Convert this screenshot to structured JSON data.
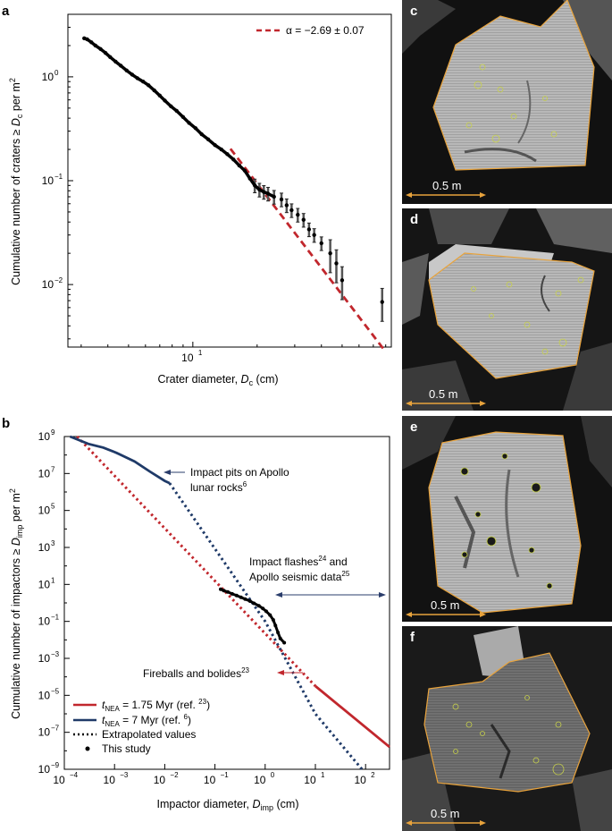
{
  "figure": {
    "panels": {
      "a": {
        "label": "a"
      },
      "b": {
        "label": "b"
      },
      "c": {
        "label": "c",
        "scale_label": "0.5 m"
      },
      "d": {
        "label": "d",
        "scale_label": "0.5 m"
      },
      "e": {
        "label": "e",
        "scale_label": "0.5 m"
      },
      "f": {
        "label": "f",
        "scale_label": "0.5 m"
      }
    },
    "colors": {
      "fit_red": "#c1272d",
      "nea_red": "#c1272d",
      "nea_blue": "#1f3a68",
      "outline_orange": "#e8a33c",
      "arrow_blue": "#2a3d6b",
      "arrow_red": "#c1272d"
    }
  },
  "chart_data": [
    {
      "type": "scatter",
      "panel": "a",
      "xlabel": "Crater diameter, D_c (cm)",
      "ylabel": "Cumulative number of craters ≥ D_c per m²",
      "x_scale": "log",
      "y_scale": "log",
      "xlim": [
        2.6,
        85
      ],
      "ylim": [
        0.0025,
        4
      ],
      "x_ticks": [
        10
      ],
      "y_ticks": [
        0.01,
        0.1,
        1
      ],
      "legend": {
        "position": "top-right",
        "text": "α = −2.69 ± 0.07"
      },
      "fit_line": {
        "alpha": -2.69,
        "uncertainty": 0.07,
        "x_range": [
          15,
          78
        ],
        "style": "dashed",
        "color": "#c1272d"
      },
      "points": [
        [
          3.1,
          2.35
        ],
        [
          3.2,
          2.3
        ],
        [
          3.35,
          2.15
        ],
        [
          3.5,
          2.0
        ],
        [
          3.7,
          1.85
        ],
        [
          3.9,
          1.7
        ],
        [
          4.1,
          1.55
        ],
        [
          4.35,
          1.4
        ],
        [
          4.6,
          1.28
        ],
        [
          4.9,
          1.15
        ],
        [
          5.2,
          1.05
        ],
        [
          5.5,
          0.97
        ],
        [
          5.85,
          0.9
        ],
        [
          6.2,
          0.83
        ],
        [
          6.6,
          0.74
        ],
        [
          7.0,
          0.66
        ],
        [
          7.4,
          0.59
        ],
        [
          7.9,
          0.52
        ],
        [
          8.4,
          0.47
        ],
        [
          9.0,
          0.41
        ],
        [
          9.6,
          0.36
        ],
        [
          10.3,
          0.32
        ],
        [
          11.0,
          0.28
        ],
        [
          11.8,
          0.25
        ],
        [
          12.7,
          0.22
        ],
        [
          13.6,
          0.2
        ],
        [
          14.5,
          0.18
        ],
        [
          15.5,
          0.16
        ],
        [
          16.5,
          0.14
        ],
        [
          17.5,
          0.125
        ],
        [
          18.5,
          0.105
        ],
        [
          19.5,
          0.09
        ],
        [
          20.5,
          0.082
        ],
        [
          21.5,
          0.078
        ],
        [
          22.5,
          0.075
        ],
        [
          24.0,
          0.07
        ],
        [
          26.0,
          0.066
        ],
        [
          27.5,
          0.058
        ],
        [
          29.0,
          0.052
        ],
        [
          31.0,
          0.047
        ],
        [
          33.0,
          0.042
        ],
        [
          35.0,
          0.034
        ],
        [
          37.0,
          0.03
        ],
        [
          40.0,
          0.025
        ],
        [
          44.0,
          0.02
        ],
        [
          47.0,
          0.016
        ],
        [
          50.0,
          0.011
        ],
        [
          77.0,
          0.0068
        ]
      ]
    },
    {
      "type": "line",
      "panel": "b",
      "xlabel": "Impactor diameter, D_imp (cm)",
      "ylabel": "Cumulative number of impactors ≥ D_imp per m²",
      "x_scale": "log",
      "y_scale": "log",
      "xlim": [
        0.0001,
        300
      ],
      "ylim": [
        1e-09,
        1000000000.0
      ],
      "x_tick_exponents": [
        -4,
        -3,
        -2,
        -1,
        0,
        1,
        2
      ],
      "y_tick_exponents": [
        -9,
        -7,
        -5,
        -3,
        -1,
        1,
        3,
        5,
        7,
        9
      ],
      "legend": {
        "position": "bottom-left",
        "entries": [
          {
            "label": "t_NEA = 1.75 Myr (ref. 23)",
            "style": "solid",
            "color": "#c1272d"
          },
          {
            "label": "t_NEA = 7 Myr (ref. 6)",
            "style": "solid",
            "color": "#1f3a68"
          },
          {
            "label": "Extrapolated values",
            "style": "dotted",
            "color": "#000000"
          },
          {
            "label": "This study",
            "style": "point",
            "color": "#000000"
          }
        ]
      },
      "annotations": [
        {
          "text": "Impact pits on Apollo lunar rocks",
          "ref": "6"
        },
        {
          "text": "Impact flashes and Apollo seismic data",
          "refs": [
            "24",
            "25"
          ]
        },
        {
          "text": "Fireballs and bolides",
          "ref": "23"
        }
      ],
      "series": [
        {
          "name": "t_NEA = 1.75 Myr (ref. 23)",
          "style": "solid",
          "color": "#c1272d",
          "points": [
            [
              10,
              3.16e-05
            ],
            [
              300,
              1.6e-08
            ]
          ]
        },
        {
          "name": "t_NEA = 1.75 Myr (ref. 23) extrapolated",
          "style": "dotted",
          "color": "#c1272d",
          "points": [
            [
              0.00018,
              1000000000.0
            ],
            [
              10,
              3.16e-05
            ]
          ]
        },
        {
          "name": "t_NEA = 7 Myr (ref. 6)",
          "style": "solid",
          "color": "#1f3a68",
          "points": [
            [
              0.00013,
              1000000000.0
            ],
            [
              0.0003,
              400000000.0
            ],
            [
              0.0006,
              250000000.0
            ],
            [
              0.0011,
              130000000.0
            ],
            [
              0.0025,
              45000000.0
            ],
            [
              0.005,
              13000000.0
            ],
            [
              0.01,
              4000000.0
            ],
            [
              0.0125,
              3000000.0
            ]
          ]
        },
        {
          "name": "t_NEA = 7 Myr (ref. 6) extrapolated",
          "style": "dotted",
          "color": "#1f3a68",
          "points": [
            [
              0.0125,
              3000000.0
            ],
            [
              1,
              0.1
            ],
            [
              10,
              1e-06
            ],
            [
              85,
              1e-09
            ]
          ]
        },
        {
          "name": "This study",
          "style": "point",
          "color": "#000000",
          "points": [
            [
              0.13,
              5.5
            ],
            [
              0.15,
              4.6
            ],
            [
              0.18,
              3.9
            ],
            [
              0.22,
              3.1
            ],
            [
              0.27,
              2.5
            ],
            [
              0.33,
              2.0
            ],
            [
              0.4,
              1.6
            ],
            [
              0.5,
              1.25
            ],
            [
              0.6,
              0.95
            ],
            [
              0.75,
              0.7
            ],
            [
              0.9,
              0.5
            ],
            [
              1.05,
              0.35
            ],
            [
              1.25,
              0.22
            ],
            [
              1.45,
              0.12
            ],
            [
              1.6,
              0.06
            ],
            [
              1.8,
              0.025
            ],
            [
              2.0,
              0.012
            ],
            [
              2.4,
              0.007
            ]
          ]
        }
      ]
    }
  ]
}
